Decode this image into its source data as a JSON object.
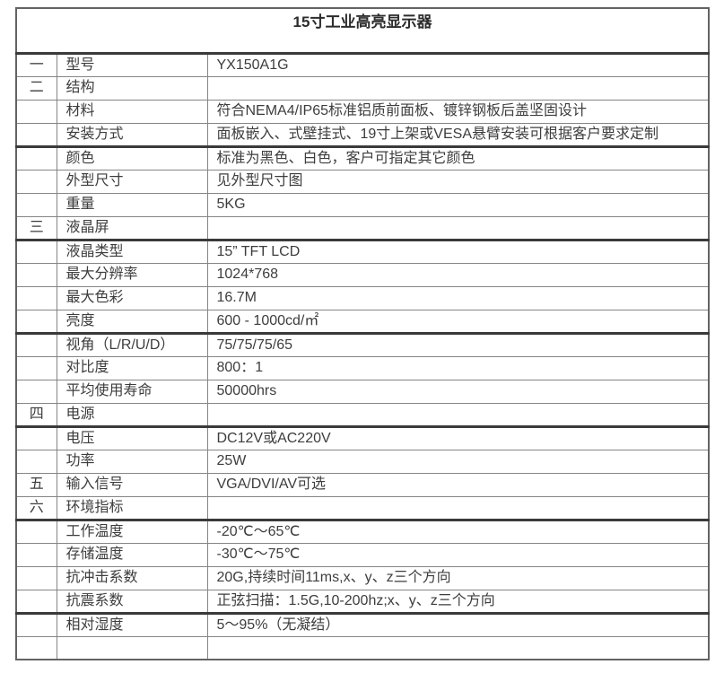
{
  "table": {
    "title": "15寸工业高亮显示器",
    "rows": [
      {
        "num": "一",
        "label": "型号",
        "value": "YX150A1G",
        "thick_bottom": false
      },
      {
        "num": "二",
        "label": "结构",
        "value": "",
        "thick_bottom": false
      },
      {
        "num": "",
        "label": "材料",
        "value": "符合NEMA4/IP65标准铝质前面板、镀锌钢板后盖坚固设计",
        "thick_bottom": false
      },
      {
        "num": "",
        "label": "安装方式",
        "value": "面板嵌入、式壁挂式、19寸上架或VESA悬臂安装可根据客户要求定制",
        "thick_bottom": true
      },
      {
        "num": "",
        "label": "颜色",
        "value": "标准为黑色、白色，客户可指定其它颜色",
        "thick_bottom": false
      },
      {
        "num": "",
        "label": "外型尺寸",
        "value": "见外型尺寸图",
        "thick_bottom": false
      },
      {
        "num": "",
        "label": "重量",
        "value": "5KG",
        "thick_bottom": false
      },
      {
        "num": "三",
        "label": "液晶屏",
        "value": "",
        "thick_bottom": true
      },
      {
        "num": "",
        "label": "液晶类型",
        "value": "15”  TFT LCD",
        "thick_bottom": false
      },
      {
        "num": "",
        "label": "最大分辨率",
        "value": "1024*768",
        "thick_bottom": false
      },
      {
        "num": "",
        "label": "最大色彩",
        "value": "16.7M",
        "thick_bottom": false
      },
      {
        "num": "",
        "label": "亮度",
        "value": "600 - 1000cd/㎡",
        "thick_bottom": true
      },
      {
        "num": "",
        "label": "视角（L/R/U/D）",
        "value": "75/75/75/65",
        "thick_bottom": false
      },
      {
        "num": "",
        "label": "对比度",
        "value": "800：1",
        "thick_bottom": false
      },
      {
        "num": "",
        "label": "平均使用寿命",
        "value": "50000hrs",
        "thick_bottom": false
      },
      {
        "num": "四",
        "label": "电源",
        "value": "",
        "thick_bottom": true
      },
      {
        "num": "",
        "label": "电压",
        "value": "DC12V或AC220V",
        "thick_bottom": false
      },
      {
        "num": "",
        "label": "功率",
        "value": "25W",
        "thick_bottom": false
      },
      {
        "num": "五",
        "label": "输入信号",
        "value": "VGA/DVI/AV可选",
        "thick_bottom": false
      },
      {
        "num": "六",
        "label": "环境指标",
        "value": "",
        "thick_bottom": true
      },
      {
        "num": "",
        "label": "工作温度",
        "value": "-20℃～65℃",
        "thick_bottom": false
      },
      {
        "num": "",
        "label": "存储温度",
        "value": "-30℃～75℃",
        "thick_bottom": false
      },
      {
        "num": "",
        "label": "抗冲击系数",
        "value": "20G,持续时间11ms,x、y、z三个方向",
        "thick_bottom": false
      },
      {
        "num": "",
        "label": "抗震系数",
        "value": "正弦扫描：1.5G,10-200hz;x、y、z三个方向",
        "thick_bottom": true
      },
      {
        "num": "",
        "label": "相对湿度",
        "value": "5～95%（无凝结）",
        "thick_bottom": false
      },
      {
        "num": "",
        "label": "",
        "value": "",
        "thick_bottom": false
      }
    ]
  }
}
